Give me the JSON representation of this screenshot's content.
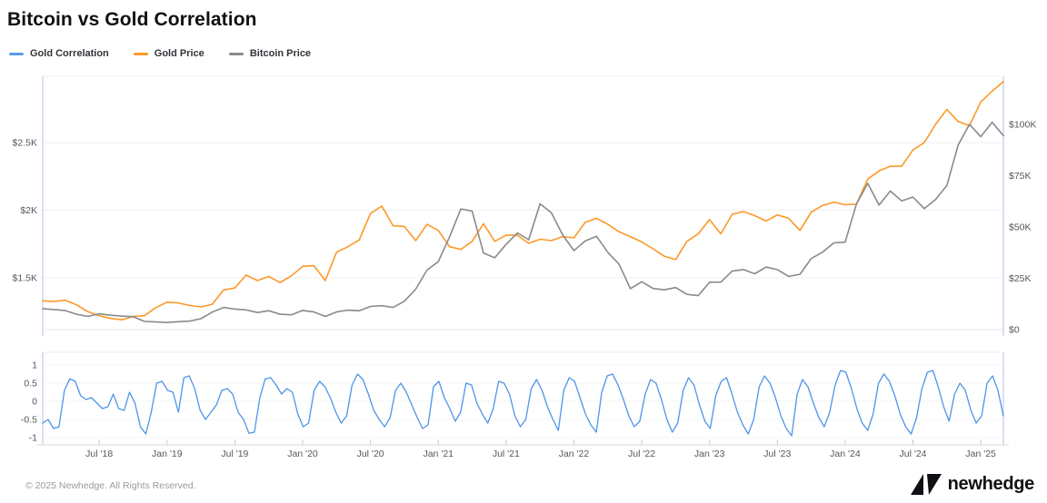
{
  "title": "Bitcoin vs Gold Correlation",
  "legend": {
    "items": [
      {
        "label": "Gold Correlation",
        "color": "#5b9ce6"
      },
      {
        "label": "Gold Price",
        "color": "#fd9827"
      },
      {
        "label": "Bitcoin Price",
        "color": "#8a8a8e"
      }
    ]
  },
  "footer": {
    "copyright": "© 2025 Newhedge. All Rights Reserved.",
    "brand": "newhedge"
  },
  "chart_data": {
    "type": "line",
    "title": "Bitcoin vs Gold Correlation",
    "x_start": "Feb 2018",
    "x_end": "Mar 2025",
    "x_interval": "monthly",
    "x_tick_labels": [
      "Jul '18",
      "Jan '19",
      "Jul '19",
      "Jan '20",
      "Jul '20",
      "Jan '21",
      "Jul '21",
      "Jan '22",
      "Jul '22",
      "Jan '23",
      "Jul '23",
      "Jan '24",
      "Jul '24",
      "Jan '25"
    ],
    "x_tick_month_indices": [
      5,
      11,
      17,
      23,
      29,
      35,
      41,
      47,
      53,
      59,
      65,
      71,
      77,
      83
    ],
    "panels": [
      {
        "id": "price",
        "grid": "horizontal",
        "left_axis": {
          "title": "Gold Price (USD)",
          "ticks": [
            {
              "label": "$1.5K",
              "value": 1500
            },
            {
              "label": "$2K",
              "value": 2000
            },
            {
              "label": "$2.5K",
              "value": 2500
            }
          ]
        },
        "right_axis": {
          "title": "Bitcoin Price (USD)",
          "ticks": [
            {
              "label": "$0",
              "value": 0
            },
            {
              "label": "$25K",
              "value": 25000
            },
            {
              "label": "$50K",
              "value": 50000
            },
            {
              "label": "$75K",
              "value": 75000
            },
            {
              "label": "$100K",
              "value": 100000
            }
          ]
        },
        "series": [
          {
            "name": "Gold Price",
            "axis": "left",
            "color": "#fd9827",
            "values": [
              1330,
              1325,
              1335,
              1300,
              1250,
              1220,
              1200,
              1190,
              1215,
              1220,
              1280,
              1320,
              1315,
              1295,
              1285,
              1305,
              1410,
              1425,
              1520,
              1480,
              1510,
              1465,
              1515,
              1585,
              1590,
              1480,
              1690,
              1730,
              1780,
              1975,
              2030,
              1885,
              1880,
              1775,
              1895,
              1850,
              1730,
              1710,
              1770,
              1900,
              1770,
              1815,
              1815,
              1755,
              1785,
              1775,
              1805,
              1795,
              1910,
              1940,
              1895,
              1840,
              1805,
              1765,
              1715,
              1660,
              1635,
              1770,
              1825,
              1930,
              1825,
              1970,
              1990,
              1960,
              1920,
              1965,
              1940,
              1850,
              1985,
              2035,
              2060,
              2040,
              2045,
              2230,
              2290,
              2325,
              2325,
              2445,
              2500,
              2635,
              2745,
              2655,
              2625,
              2800,
              2880,
              2950
            ]
          },
          {
            "name": "Bitcoin Price",
            "axis": "right",
            "color": "#8a8a8e",
            "values": [
              10200,
              9800,
              9250,
              7500,
              6400,
              7700,
              7000,
              6600,
              6300,
              4000,
              3700,
              3450,
              3850,
              4100,
              5300,
              8500,
              10800,
              10000,
              9600,
              8300,
              9200,
              7500,
              7200,
              9350,
              8600,
              6400,
              8600,
              9450,
              9150,
              11300,
              11650,
              10800,
              13800,
              19700,
              29000,
              33100,
              45200,
              58800,
              57750,
              37300,
              35000,
              41500,
              47100,
              43800,
              61300,
              57000,
              46200,
              38500,
              43200,
              45500,
              37650,
              31800,
              19950,
              23300,
              20050,
              19400,
              20500,
              17150,
              16550,
              23100,
              23150,
              28500,
              29250,
              27200,
              30450,
              29250,
              25950,
              26950,
              34650,
              37700,
              42250,
              42600,
              61150,
              71300,
              60650,
              67500,
              62700,
              64600,
              58950,
              63350,
              70200,
              90000,
              100000,
              94000,
              101000,
              94500
            ]
          }
        ]
      },
      {
        "id": "correlation",
        "grid": "horizontal",
        "left_axis": {
          "title": "Correlation",
          "ticks": [
            {
              "label": "1",
              "value": 1
            },
            {
              "label": "0.5",
              "value": 0.5
            },
            {
              "label": "0",
              "value": 0
            },
            {
              "label": "-0.5",
              "value": -0.5
            },
            {
              "label": "-1",
              "value": -1
            }
          ],
          "range": [
            -1,
            1
          ]
        },
        "series": [
          {
            "name": "Gold Correlation",
            "axis": "left",
            "color": "#4f94e8",
            "interval": "semi-monthly",
            "values": [
              -0.6,
              -0.5,
              -0.75,
              -0.7,
              0.3,
              0.62,
              0.55,
              0.15,
              0.05,
              0.1,
              -0.05,
              -0.2,
              -0.15,
              0.2,
              -0.2,
              -0.25,
              0.25,
              -0.05,
              -0.7,
              -0.9,
              -0.3,
              0.5,
              0.55,
              0.3,
              0.25,
              -0.3,
              0.65,
              0.7,
              0.35,
              -0.25,
              -0.5,
              -0.3,
              -0.1,
              0.3,
              0.35,
              0.2,
              -0.3,
              -0.5,
              -0.88,
              -0.85,
              0.1,
              0.62,
              0.65,
              0.45,
              0.2,
              0.35,
              0.25,
              -0.35,
              -0.7,
              -0.6,
              0.3,
              0.55,
              0.4,
              0.1,
              -0.3,
              -0.6,
              -0.4,
              0.45,
              0.75,
              0.6,
              0.2,
              -0.25,
              -0.5,
              -0.7,
              -0.45,
              0.3,
              0.5,
              0.25,
              -0.1,
              -0.45,
              -0.75,
              -0.65,
              0.4,
              0.55,
              0.1,
              -0.2,
              -0.55,
              -0.3,
              0.5,
              0.45,
              -0.05,
              -0.35,
              -0.6,
              -0.2,
              0.55,
              0.5,
              0.2,
              -0.4,
              -0.7,
              -0.5,
              0.35,
              0.6,
              0.3,
              -0.15,
              -0.5,
              -0.8,
              0.3,
              0.65,
              0.55,
              0.1,
              -0.35,
              -0.65,
              -0.85,
              0.25,
              0.7,
              0.75,
              0.45,
              0.05,
              -0.4,
              -0.7,
              -0.55,
              0.2,
              0.6,
              0.5,
              0.05,
              -0.5,
              -0.85,
              -0.6,
              0.3,
              0.65,
              0.45,
              -0.1,
              -0.55,
              -0.75,
              0.15,
              0.55,
              0.65,
              0.2,
              -0.3,
              -0.65,
              -0.9,
              -0.5,
              0.4,
              0.7,
              0.5,
              0.1,
              -0.4,
              -0.75,
              -0.95,
              0.2,
              0.6,
              0.4,
              -0.05,
              -0.45,
              -0.7,
              -0.3,
              0.45,
              0.85,
              0.8,
              0.35,
              -0.2,
              -0.6,
              -0.8,
              -0.35,
              0.5,
              0.75,
              0.55,
              0.15,
              -0.35,
              -0.7,
              -0.9,
              -0.45,
              0.35,
              0.8,
              0.85,
              0.4,
              -0.15,
              -0.55,
              0.2,
              0.5,
              0.3,
              -0.25,
              -0.6,
              -0.4,
              0.5,
              0.7,
              0.3,
              -0.4
            ]
          }
        ]
      }
    ],
    "colors": {
      "grid": "#efeff2",
      "axis_border": "#ccd7ec",
      "baseline": "#d8d9de"
    }
  }
}
